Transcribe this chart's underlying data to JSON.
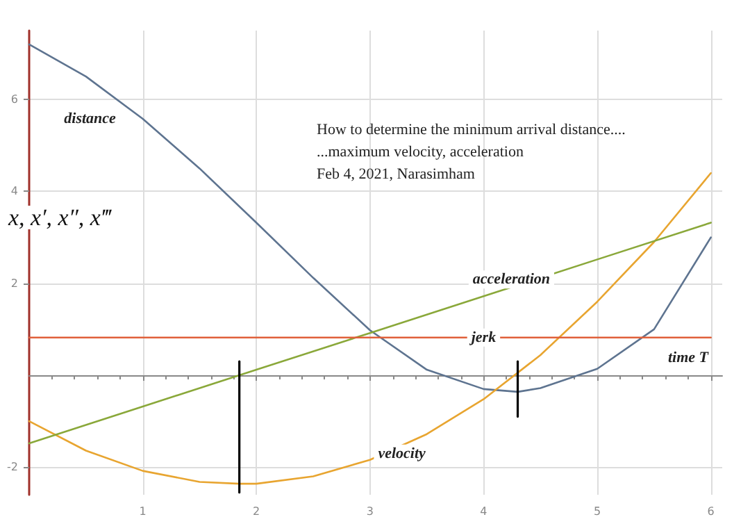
{
  "chart_data": {
    "type": "line",
    "xlabel": "time T",
    "ylabel": "x, x′, x″, x‴",
    "annotations": [
      "How to determine the minimum arrival distance....",
      "...maximum velocity, acceleration",
      "Feb 4, 2021, Narasimham"
    ],
    "series": [
      {
        "name": "distance",
        "color": "#5e7490",
        "x": [
          0,
          0.5,
          1,
          1.5,
          2,
          2.5,
          3,
          3.5,
          4,
          4.3,
          4.5,
          5,
          5.5,
          6
        ],
        "values": [
          7.2,
          6.5,
          5.58,
          4.5,
          3.32,
          2.12,
          0.98,
          0.12,
          -0.3,
          -0.36,
          -0.28,
          0.14,
          1.0,
          3.0
        ]
      },
      {
        "name": "velocity",
        "color": "#e8a530",
        "x": [
          0,
          0.5,
          1,
          1.5,
          1.85,
          2,
          2.5,
          3,
          3.5,
          4,
          4.5,
          5,
          5.5,
          6
        ],
        "values": [
          -1.0,
          -1.64,
          -2.08,
          -2.32,
          -2.36,
          -2.36,
          -2.2,
          -1.84,
          -1.28,
          -0.52,
          0.44,
          1.6,
          2.9,
          4.4
        ]
      },
      {
        "name": "acceleration",
        "color": "#8aa83a",
        "x": [
          0,
          1,
          2,
          3,
          4,
          5,
          6
        ],
        "values": [
          -1.48,
          -0.68,
          0.12,
          0.92,
          1.72,
          2.52,
          3.32
        ]
      },
      {
        "name": "jerk",
        "color": "#e0603a",
        "x": [
          0,
          1,
          2,
          3,
          4,
          5,
          6
        ],
        "values": [
          0.82,
          0.82,
          0.82,
          0.82,
          0.82,
          0.82,
          0.82
        ]
      },
      {
        "color": "#000000",
        "x": [
          1.85,
          1.85
        ],
        "values": [
          0.3,
          -2.55
        ]
      },
      {
        "color": "#000000",
        "x": [
          4.3,
          4.3
        ],
        "values": [
          0.3,
          -0.9
        ]
      }
    ],
    "xlim": [
      0,
      6.1
    ],
    "ylim": [
      -2.6,
      7.5
    ],
    "xticks": [
      1,
      2,
      3,
      4,
      5,
      6
    ],
    "yticks": [
      -2,
      2,
      4,
      6
    ],
    "grid": true,
    "legend": false,
    "marker": "none",
    "line_style": "solid"
  }
}
